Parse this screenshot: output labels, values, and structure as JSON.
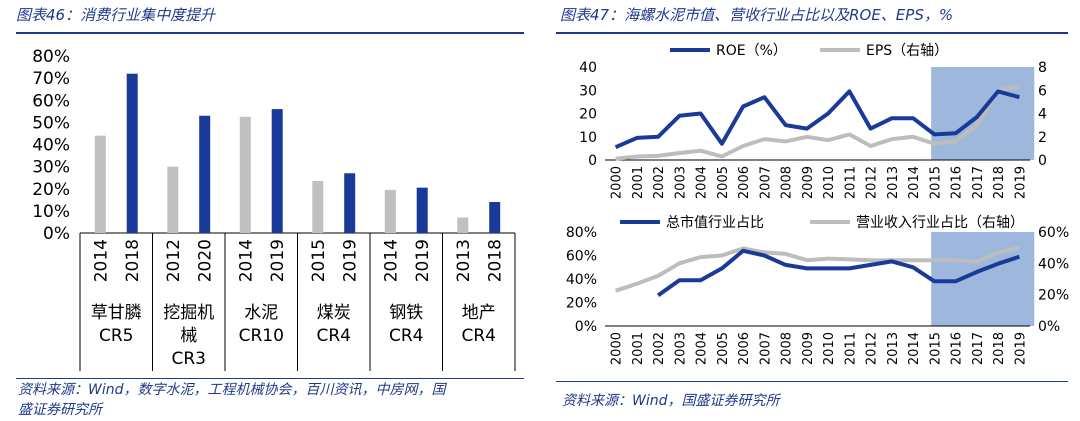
{
  "left": {
    "title": "图表46：消费行业集中度提升",
    "source": "资料来源：Wind，数字水泥，工程机械协会，百川资讯，中房网，国盛证券研究所",
    "source_line1": "资料来源：Wind，数字水泥，工程机械协会，百川资讯，中房网，国",
    "source_line2": "盛证券研究所"
  },
  "right": {
    "title": "图表47：海螺水泥市值、营收行业占比以及ROE、EPS，%",
    "source": "资料来源：Wind，国盛证券研究所"
  },
  "chart_data": [
    {
      "type": "bar",
      "ylim": [
        0,
        80
      ],
      "y_ticks": [
        "0%",
        "10%",
        "20%",
        "30%",
        "40%",
        "50%",
        "60%",
        "70%",
        "80%"
      ],
      "groups": [
        {
          "name_lines": [
            "草甘膦",
            "CR5"
          ],
          "years": [
            "2014",
            "2018"
          ],
          "values": [
            44,
            72
          ]
        },
        {
          "name_lines": [
            "挖掘机",
            "械",
            "CR3"
          ],
          "years": [
            "2012",
            "2020"
          ],
          "values": [
            30,
            53
          ]
        },
        {
          "name_lines": [
            "水泥",
            "CR10"
          ],
          "years": [
            "2014",
            "2019"
          ],
          "values": [
            52.5,
            56
          ]
        },
        {
          "name_lines": [
            "煤炭",
            "CR4"
          ],
          "years": [
            "2015",
            "2019"
          ],
          "values": [
            23.5,
            27
          ]
        },
        {
          "name_lines": [
            "钢铁",
            "CR4"
          ],
          "years": [
            "2014",
            "2019"
          ],
          "values": [
            19.5,
            20.5
          ]
        },
        {
          "name_lines": [
            "地产",
            "CR4"
          ],
          "years": [
            "2013",
            "2018"
          ],
          "values": [
            7,
            14
          ]
        }
      ],
      "colors": {
        "old": "#c0c0c0",
        "new": "#1a3a9a"
      }
    },
    {
      "type": "line",
      "x": [
        "2000",
        "2001",
        "2002",
        "2003",
        "2004",
        "2005",
        "2006",
        "2007",
        "2008",
        "2009",
        "2010",
        "2011",
        "2012",
        "2013",
        "2014",
        "2015",
        "2016",
        "2017",
        "2018",
        "2019"
      ],
      "highlight": [
        "2015",
        "2019"
      ],
      "ylim_left": [
        0,
        40
      ],
      "ylim_right": [
        0,
        8
      ],
      "y_ticks_left": [
        "0",
        "10",
        "20",
        "30",
        "40"
      ],
      "y_ticks_right": [
        "0",
        "2",
        "4",
        "6",
        "8"
      ],
      "series": [
        {
          "name": "ROE（%）",
          "axis": "left",
          "color": "#1a3a9a",
          "values": [
            5.5,
            9.5,
            10,
            19,
            20,
            7,
            23,
            27,
            15,
            13.5,
            20,
            29.5,
            13.5,
            18,
            18,
            11,
            11.5,
            18.5,
            29.5,
            27
          ]
        },
        {
          "name": "EPS（右轴）",
          "axis": "right",
          "color": "#bdbdbd",
          "values": [
            0.1,
            0.3,
            0.35,
            0.6,
            0.8,
            0.3,
            1.2,
            1.8,
            1.6,
            2.0,
            1.7,
            2.2,
            1.2,
            1.8,
            2.0,
            1.4,
            1.6,
            3.0,
            6.0,
            6.3
          ]
        }
      ]
    },
    {
      "type": "line",
      "x": [
        "2000",
        "2001",
        "2002",
        "2003",
        "2004",
        "2005",
        "2006",
        "2007",
        "2008",
        "2009",
        "2010",
        "2011",
        "2012",
        "2013",
        "2014",
        "2015",
        "2016",
        "2017",
        "2018",
        "2019"
      ],
      "highlight": [
        "2015",
        "2019"
      ],
      "ylim_left": [
        0,
        80
      ],
      "ylim_right": [
        0,
        60
      ],
      "y_ticks_left": [
        "0%",
        "20%",
        "40%",
        "60%",
        "80%"
      ],
      "y_ticks_right": [
        "0%",
        "20%",
        "40%",
        "60%"
      ],
      "series": [
        {
          "name": "总市值行业占比",
          "axis": "left",
          "color": "#1a3a9a",
          "values": [
            null,
            null,
            26,
            39,
            39,
            49,
            64,
            60,
            52,
            49,
            49,
            49,
            52,
            55,
            50,
            38,
            38,
            46,
            53,
            59
          ]
        },
        {
          "name": "营业收入行业占比（右轴）",
          "axis": "right",
          "color": "#bdbdbd",
          "values": [
            22.5,
            27,
            32,
            40,
            44,
            45,
            49.5,
            47,
            46,
            42,
            43,
            42.5,
            42,
            42,
            42,
            42,
            42,
            41,
            47,
            50
          ]
        }
      ]
    }
  ]
}
